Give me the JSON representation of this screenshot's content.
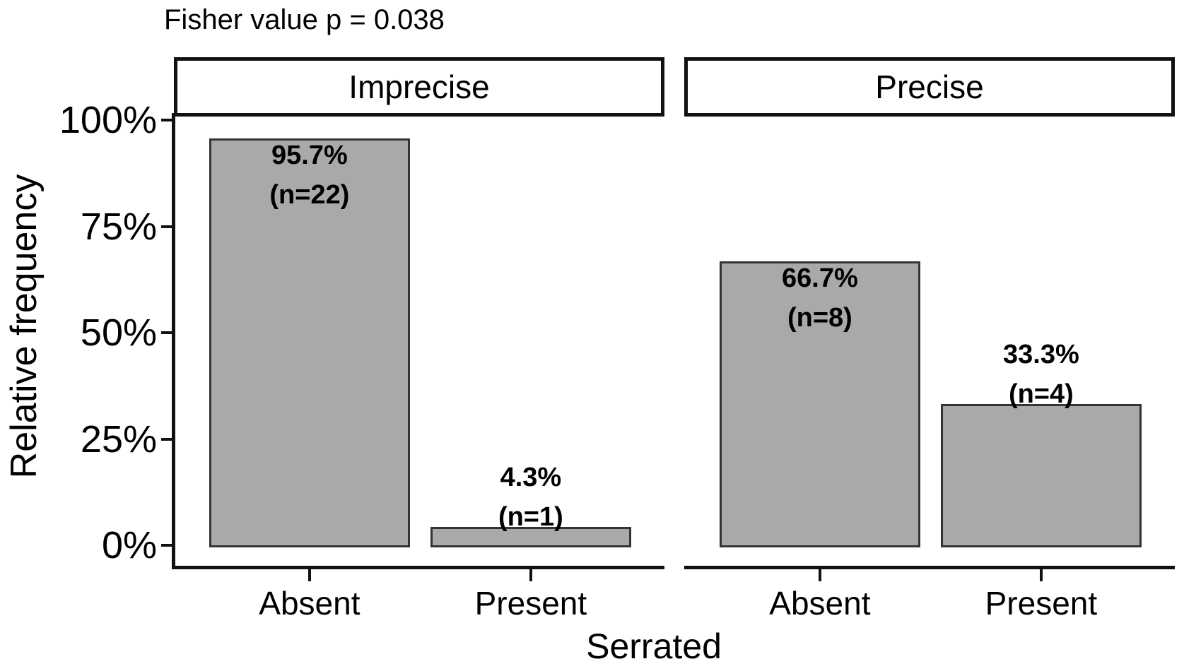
{
  "chart_data": {
    "type": "bar",
    "title": "Fisher value p = 0.038",
    "fisher_p_value": 0.038,
    "xlabel": "Serrated",
    "ylabel": "Relative frequency",
    "ylim": [
      0,
      100
    ],
    "grid": "off",
    "legend": "none",
    "y_ticks": [
      {
        "label": "100%",
        "value": 100
      },
      {
        "label": "75%",
        "value": 75
      },
      {
        "label": "50%",
        "value": 50
      },
      {
        "label": "25%",
        "value": 25
      },
      {
        "label": "0%",
        "value": 0
      }
    ],
    "categories": [
      "Absent",
      "Present"
    ],
    "facets": [
      {
        "label": "Imprecise",
        "bars": [
          {
            "category": "Absent",
            "value": 95.7,
            "n": 22,
            "value_label": "95.7%",
            "n_label": "(n=22)"
          },
          {
            "category": "Present",
            "value": 4.3,
            "n": 1,
            "value_label": "4.3%",
            "n_label": "(n=1)"
          }
        ]
      },
      {
        "label": "Precise",
        "bars": [
          {
            "category": "Absent",
            "value": 66.7,
            "n": 8,
            "value_label": "66.7%",
            "n_label": "(n=8)"
          },
          {
            "category": "Present",
            "value": 33.3,
            "n": 4,
            "value_label": "33.3%",
            "n_label": "(n=4)"
          }
        ]
      }
    ],
    "colors": {
      "bar_fill": "#a9a9a9",
      "bar_border": "#333333",
      "axis": "#111111",
      "text": "#000000",
      "strip_background": "#ffffff",
      "strip_border": "#111111"
    }
  }
}
